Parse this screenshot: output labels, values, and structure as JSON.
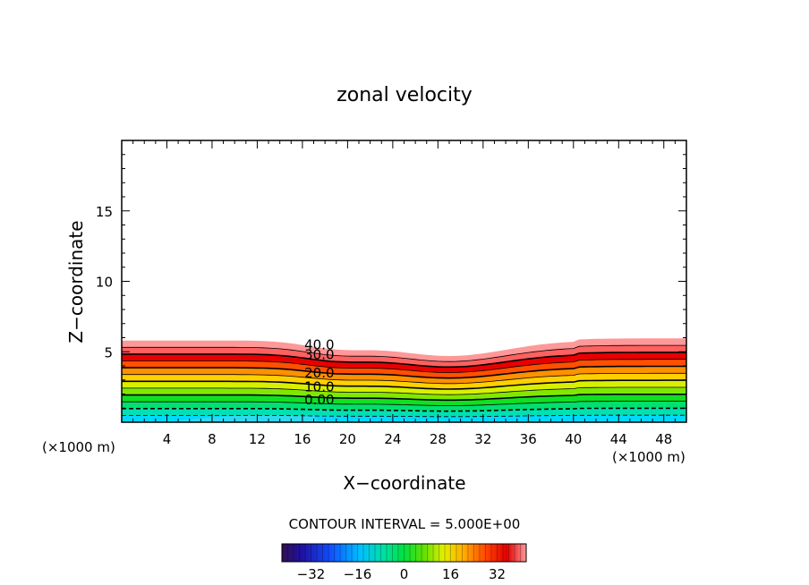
{
  "chart_data": {
    "type": "heatmap",
    "title": "zonal velocity",
    "xlabel": "X−coordinate",
    "ylabel": "Z−coordinate",
    "x_unit_left": "(×1000 m)",
    "x_unit_right": "(×1000 m)",
    "xlim": [
      0,
      50
    ],
    "ylim": [
      0,
      20
    ],
    "x_ticks": [
      "4",
      "8",
      "12",
      "16",
      "20",
      "24",
      "28",
      "32",
      "36",
      "40",
      "44",
      "48"
    ],
    "y_ticks": [
      "5",
      "10",
      "15"
    ],
    "contour_interval_text": "CONTOUR INTERVAL = 5.000E+00",
    "contour_labels": [
      {
        "text": "40.0",
        "x": 17.5,
        "z": 5.5
      },
      {
        "text": "30.0",
        "x": 17.5,
        "z": 4.8
      },
      {
        "text": "20.0",
        "x": 17.5,
        "z": 3.5
      },
      {
        "text": "10.0",
        "x": 17.5,
        "z": 2.5
      },
      {
        "text": "0.00",
        "x": 17.5,
        "z": 1.6
      }
    ],
    "colorbar": {
      "range": [
        -42,
        42
      ],
      "ticks": [
        "−32",
        "−16",
        "0",
        "16",
        "32"
      ]
    },
    "field_top_z": 5.8,
    "field_color_stops": [
      "#00d8ff",
      "#00e0b0",
      "#00e070",
      "#10e020",
      "#80e800",
      "#d8f000",
      "#ffd000",
      "#ff9000",
      "#ff5000",
      "#e80000",
      "#ff6060",
      "#ff9898"
    ]
  }
}
